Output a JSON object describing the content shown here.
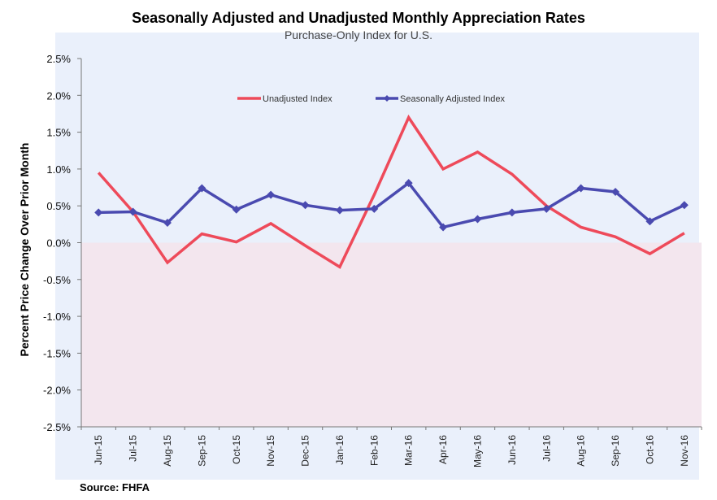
{
  "chart_data": {
    "type": "line",
    "title": "Seasonally Adjusted and Unadjusted Monthly Appreciation Rates",
    "subtitle": "Purchase-Only Index for U.S.",
    "xlabel": "",
    "ylabel": "Percent Price Change Over Prior Month",
    "ylim": [
      -2.5,
      2.5
    ],
    "y_ticks": [
      2.5,
      2.0,
      1.5,
      1.0,
      0.5,
      0.0,
      -0.5,
      -1.0,
      -1.5,
      -2.0,
      -2.5
    ],
    "y_tick_labels": [
      "2.5%",
      "2.0%",
      "1.5%",
      "1.0%",
      "0.5%",
      "0.0%",
      "-0.5%",
      "-1.0%",
      "-1.5%",
      "-2.0%",
      "-2.5%"
    ],
    "grid": false,
    "legend_position": "top-center",
    "categories": [
      "Jun-15",
      "Jul-15",
      "Aug-15",
      "Sep-15",
      "Oct-15",
      "Nov-15",
      "Dec-15",
      "Jan-16",
      "Feb-16",
      "Mar-16",
      "Apr-16",
      "May-16",
      "Jun-16",
      "Jul-16",
      "Aug-16",
      "Sep-16",
      "Oct-16",
      "Nov-16"
    ],
    "series": [
      {
        "name": "Unadjusted Index",
        "color": "#ee4a5a",
        "marker": "none",
        "values": [
          0.95,
          0.42,
          -0.27,
          0.12,
          0.01,
          0.26,
          -0.04,
          -0.33,
          0.65,
          1.7,
          1.0,
          1.23,
          0.93,
          0.5,
          0.21,
          0.08,
          -0.15,
          0.13
        ]
      },
      {
        "name": "Seasonally Adjusted Index",
        "color": "#4a4ab0",
        "marker": "diamond",
        "values": [
          0.41,
          0.42,
          0.27,
          0.74,
          0.45,
          0.65,
          0.51,
          0.44,
          0.46,
          0.81,
          0.21,
          0.32,
          0.41,
          0.46,
          0.74,
          0.69,
          0.29,
          0.51
        ]
      }
    ],
    "source": "Source: FHFA"
  },
  "colors": {
    "panel_background": "#eaf0fb",
    "negative_region": "#f3e6ee",
    "axis": "#777777"
  }
}
